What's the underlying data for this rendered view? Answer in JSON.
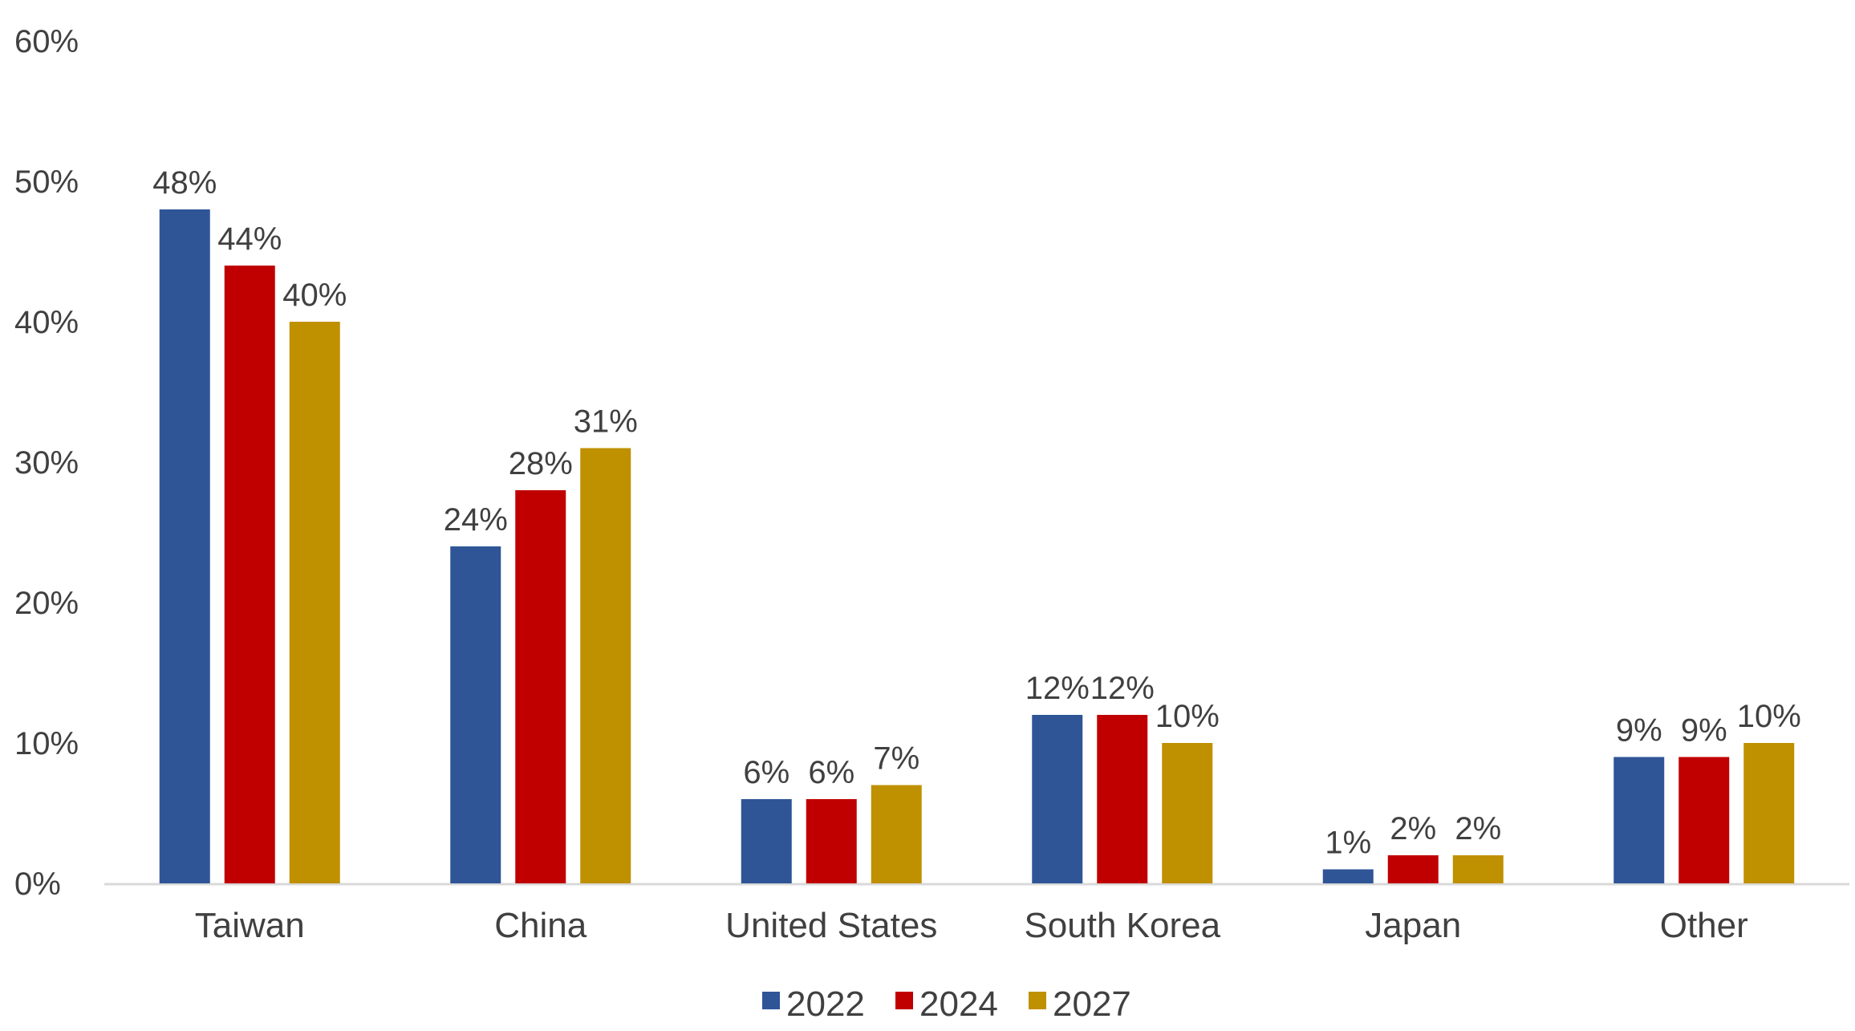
{
  "chart_data": {
    "type": "bar",
    "title": "",
    "xlabel": "",
    "ylabel": "",
    "categories": [
      "Taiwan",
      "China",
      "United States",
      "South Korea",
      "Japan",
      "Other"
    ],
    "series": [
      {
        "name": "2022",
        "color": "#2F5597",
        "values": [
          48,
          24,
          6,
          12,
          1,
          9
        ]
      },
      {
        "name": "2024",
        "color": "#C00000",
        "values": [
          44,
          28,
          6,
          12,
          2,
          9
        ]
      },
      {
        "name": "2027",
        "color": "#BF9000",
        "values": [
          40,
          31,
          7,
          10,
          2,
          10
        ]
      }
    ],
    "value_suffix": "%",
    "ylim": [
      0,
      60
    ],
    "yticks": [
      0,
      10,
      20,
      30,
      40,
      50,
      60
    ],
    "ytick_labels": [
      "0%",
      "10%",
      "20%",
      "30%",
      "40%",
      "50%",
      "60%"
    ],
    "grid": false,
    "legend_position": "bottom",
    "data_labels": true
  }
}
